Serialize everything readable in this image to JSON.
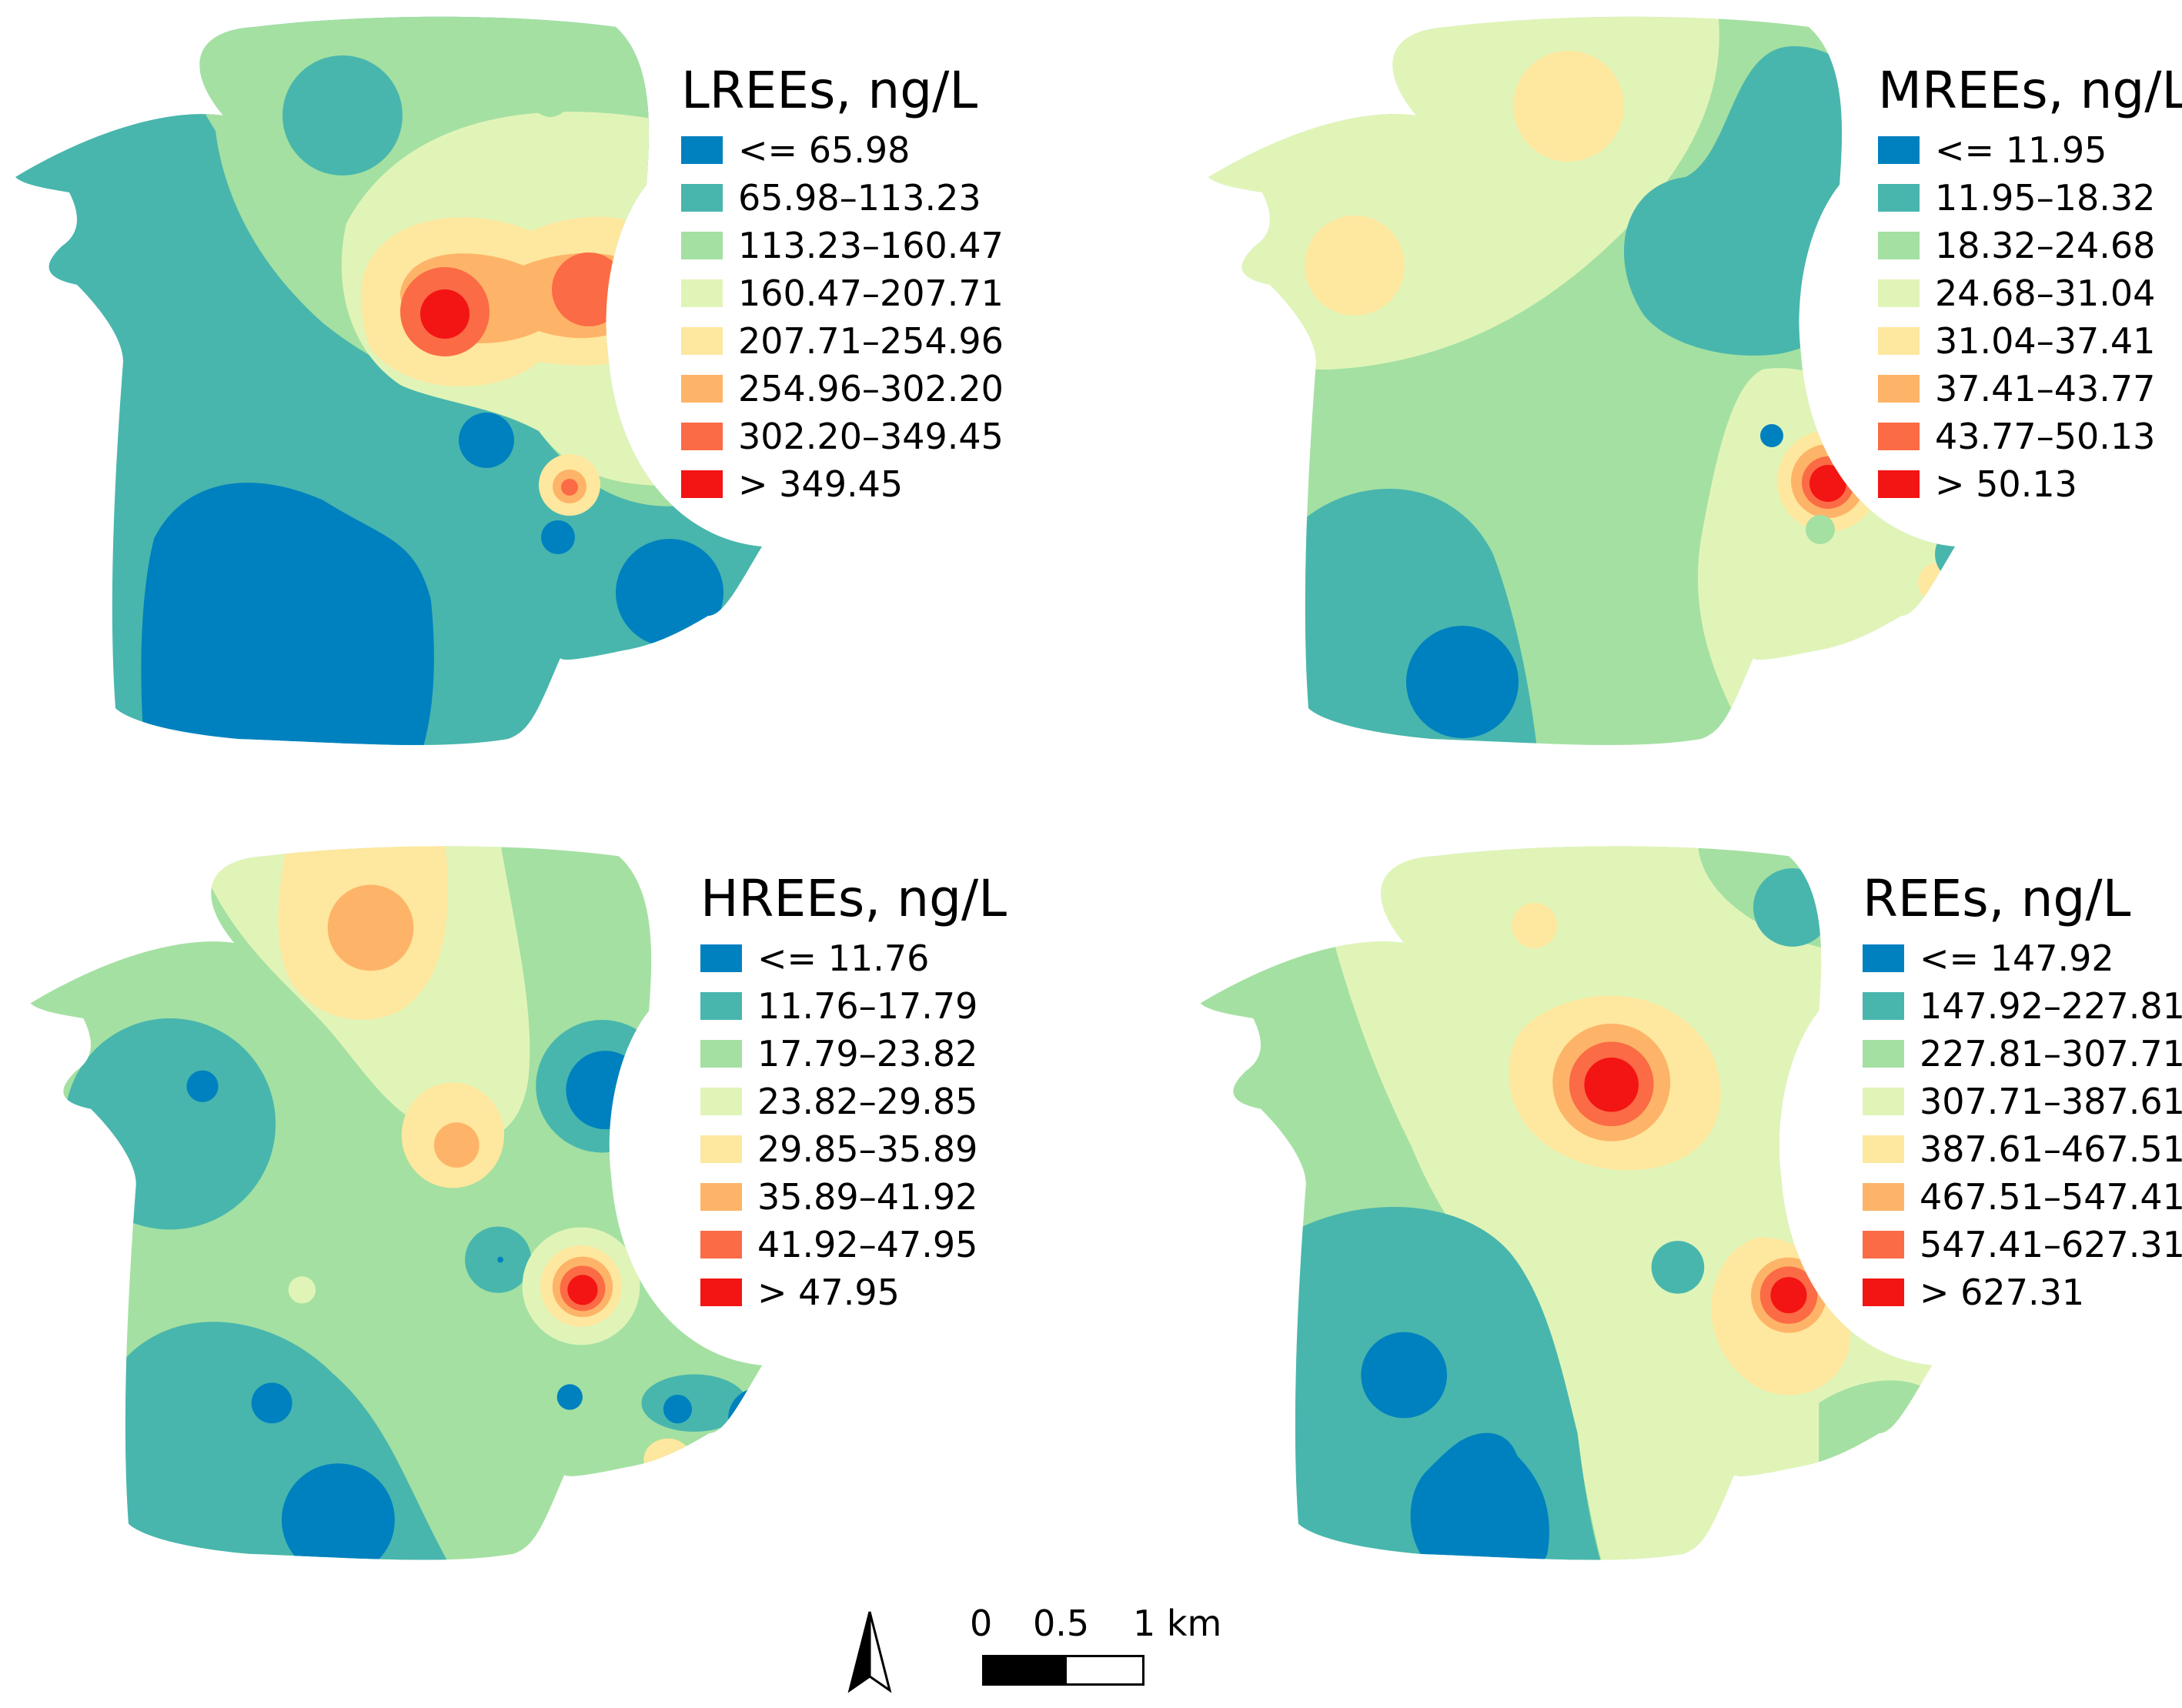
{
  "palette": [
    "#0081bf",
    "#48b6ad",
    "#a4e0a2",
    "#e1f4b8",
    "#fee79e",
    "#fdb468",
    "#fb6b45",
    "#f31414"
  ],
  "maps": [
    {
      "title": "LREEs, ng/L",
      "classes": [
        "<= 65.98",
        "65.98–113.23",
        "113.23–160.47",
        "160.47–207.71",
        "207.71–254.96",
        "254.96–302.20",
        "302.20–349.45",
        "> 349.45"
      ]
    },
    {
      "title": "MREEs, ng/L",
      "classes": [
        "<= 11.95",
        "11.95–18.32",
        "18.32–24.68",
        "24.68–31.04",
        "31.04–37.41",
        "37.41–43.77",
        "43.77–50.13",
        "> 50.13"
      ]
    },
    {
      "title": "HREEs, ng/L",
      "classes": [
        "<= 11.76",
        "11.76–17.79",
        "17.79–23.82",
        "23.82–29.85",
        "29.85–35.89",
        "35.89–41.92",
        "41.92–47.95",
        "> 47.95"
      ]
    },
    {
      "title": "REEs, ng/L",
      "classes": [
        "<= 147.92",
        "147.92–227.81",
        "227.81–307.71",
        "307.71–387.61",
        "387.61–467.51",
        "467.51–547.41",
        "547.41–627.31",
        "> 627.31"
      ]
    }
  ],
  "scale_bar": {
    "labels": [
      "0",
      "0.5",
      "1 km"
    ]
  },
  "north_arrow_icon": "north-arrow-icon"
}
